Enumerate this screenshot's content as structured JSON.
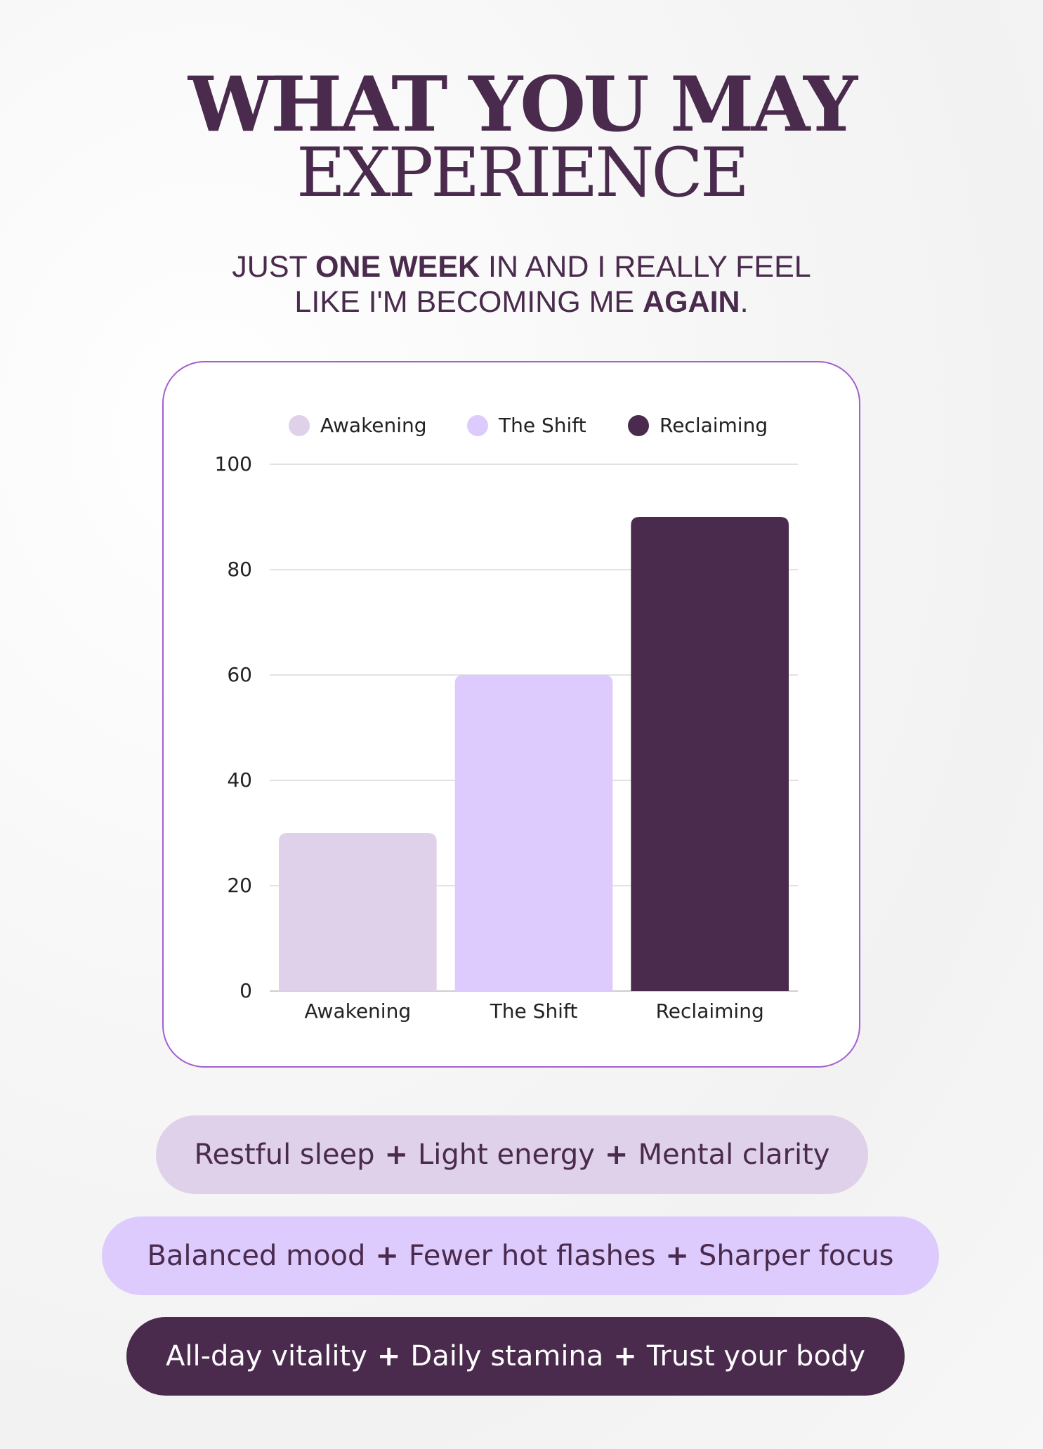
{
  "title": {
    "line1": "WHAT YOU MAY",
    "line2": "EXPERIENCE"
  },
  "subtitle": {
    "line1": {
      "pre": "JUST ",
      "bold": "ONE WEEK",
      "post": " IN AND I REALLY FEEL"
    },
    "line2": {
      "pre": "LIKE I'M BECOMING ME ",
      "bold": "AGAIN",
      "post": "."
    }
  },
  "chart_data": {
    "type": "bar",
    "categories": [
      "Awakening",
      "The Shift",
      "Reclaiming"
    ],
    "values": [
      30,
      60,
      90
    ],
    "colors": [
      "#e0d1ea",
      "#dccbfc",
      "#4a2a4d"
    ],
    "ylim": [
      0,
      100
    ],
    "yticks": [
      0,
      20,
      40,
      60,
      80,
      100
    ],
    "legend": [
      "Awakening",
      "The Shift",
      "Reclaiming"
    ],
    "legend_position": "top",
    "grid": true,
    "title": "",
    "xlabel": "",
    "ylabel": ""
  },
  "benefits": [
    {
      "items": [
        "Restful sleep",
        "Light energy",
        "Mental clarity"
      ],
      "bg": "#e0d1ea",
      "fg": "#4a2a4d"
    },
    {
      "items": [
        "Balanced mood",
        "Fewer hot flashes",
        "Sharper focus"
      ],
      "bg": "#dccbfc",
      "fg": "#4a2a4d"
    },
    {
      "items": [
        "All-day vitality",
        "Daily stamina",
        "Trust your body"
      ],
      "bg": "#4a2a4d",
      "fg": "#ffffff"
    }
  ],
  "separator": "+"
}
